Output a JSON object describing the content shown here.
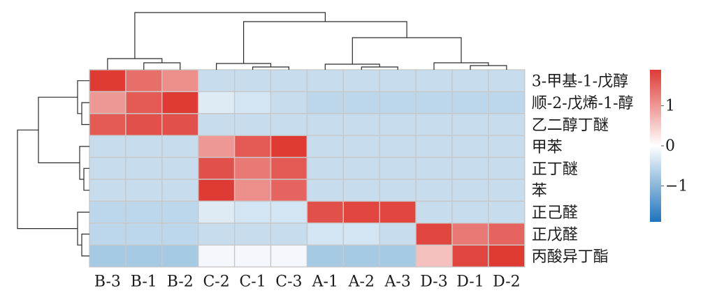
{
  "chart_data": {
    "type": "heatmap",
    "columns": [
      "B-3",
      "B-1",
      "B-2",
      "C-2",
      "C-1",
      "C-3",
      "A-1",
      "A-2",
      "A-3",
      "D-3",
      "D-1",
      "D-2"
    ],
    "rows": [
      "3-甲基-1-戊醇",
      "顺-2-戊烯-1-醇",
      "乙二醇丁醚",
      "甲苯",
      "正丁醚",
      "苯",
      "正己醛",
      "正戊醛",
      "丙酸异丁酯"
    ],
    "values": [
      [
        2.0,
        1.4,
        1.1,
        -0.5,
        -0.5,
        -0.5,
        -0.5,
        -0.5,
        -0.5,
        -0.5,
        -0.5,
        -0.5
      ],
      [
        1.0,
        1.6,
        1.9,
        -0.3,
        -0.4,
        -0.5,
        -0.6,
        -0.6,
        -0.6,
        -0.6,
        -0.6,
        -0.6
      ],
      [
        1.6,
        1.7,
        1.7,
        -0.5,
        -0.5,
        -0.5,
        -0.5,
        -0.5,
        -0.5,
        -0.5,
        -0.5,
        -0.5
      ],
      [
        -0.5,
        -0.5,
        -0.5,
        1.0,
        1.6,
        2.0,
        -0.5,
        -0.5,
        -0.5,
        -0.5,
        -0.5,
        -0.5
      ],
      [
        -0.5,
        -0.5,
        -0.5,
        1.7,
        1.3,
        1.6,
        -0.5,
        -0.5,
        -0.5,
        -0.5,
        -0.5,
        -0.5
      ],
      [
        -0.5,
        -0.5,
        -0.5,
        2.0,
        1.1,
        1.5,
        -0.5,
        -0.5,
        -0.5,
        -0.5,
        -0.5,
        -0.5
      ],
      [
        -0.6,
        -0.6,
        -0.6,
        -0.3,
        -0.4,
        -0.4,
        1.7,
        1.8,
        1.8,
        -0.5,
        -0.5,
        -0.5
      ],
      [
        -0.6,
        -0.6,
        -0.6,
        -0.5,
        -0.5,
        -0.5,
        -0.4,
        -0.4,
        -0.5,
        1.8,
        1.3,
        1.5
      ],
      [
        -0.8,
        -0.8,
        -0.8,
        -0.1,
        -0.1,
        -0.1,
        -0.8,
        -0.8,
        -0.8,
        0.6,
        1.8,
        2.1
      ]
    ],
    "legend": {
      "ticks": [
        1,
        0,
        -1
      ],
      "tick_labels": [
        "1",
        "0",
        "−1"
      ],
      "range": [
        -1.9,
        1.9
      ]
    },
    "colors": {
      "low": "#2c7fc0",
      "mid": "#ffffff",
      "high": "#de3b35",
      "grid": "#c8c8c8"
    }
  }
}
